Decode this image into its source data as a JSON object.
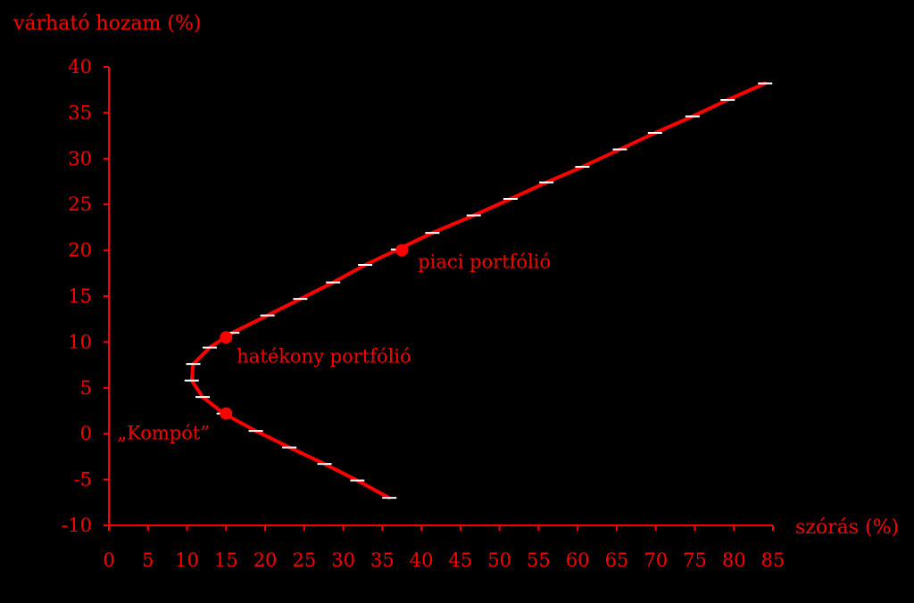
{
  "colors": {
    "background": "#000000",
    "accent": "#ff0000",
    "marker": "#ffffff"
  },
  "chart_data": {
    "type": "line",
    "xlabel": "szórás (%)",
    "ylabel": "várható hozam (%)",
    "xlim": [
      0,
      85
    ],
    "ylim": [
      -10,
      40
    ],
    "xticks": [
      0,
      5,
      10,
      15,
      20,
      25,
      30,
      35,
      40,
      45,
      50,
      55,
      60,
      65,
      70,
      75,
      80,
      85
    ],
    "yticks": [
      -10,
      -5,
      0,
      5,
      10,
      15,
      20,
      25,
      30,
      35,
      40
    ],
    "grid": false,
    "series": [
      {
        "x": [
          35.9,
          31.8,
          27.6,
          23.1,
          18.8,
          14.7,
          12.0,
          10.6,
          10.8,
          12.9,
          15.8,
          20.3,
          24.5,
          28.7,
          32.8,
          37.0,
          41.4,
          46.7,
          51.4,
          56.0,
          60.6,
          65.4,
          69.9,
          74.7,
          79.2,
          84.0
        ],
        "y": [
          -7.0,
          -5.1,
          -3.3,
          -1.5,
          0.3,
          2.2,
          4.0,
          5.8,
          7.6,
          9.4,
          11.0,
          12.9,
          14.7,
          16.5,
          18.4,
          20.1,
          21.9,
          23.8,
          25.6,
          27.4,
          29.1,
          31.0,
          32.8,
          34.6,
          36.4,
          38.2
        ]
      }
    ],
    "highlighted_points": [
      {
        "x": 15.0,
        "y": 2.2,
        "label": "„Kompót”"
      },
      {
        "x": 15.0,
        "y": 10.5,
        "label": "hatékony portfólió"
      },
      {
        "x": 37.5,
        "y": 20.0,
        "label": "piaci portfólió"
      }
    ]
  }
}
